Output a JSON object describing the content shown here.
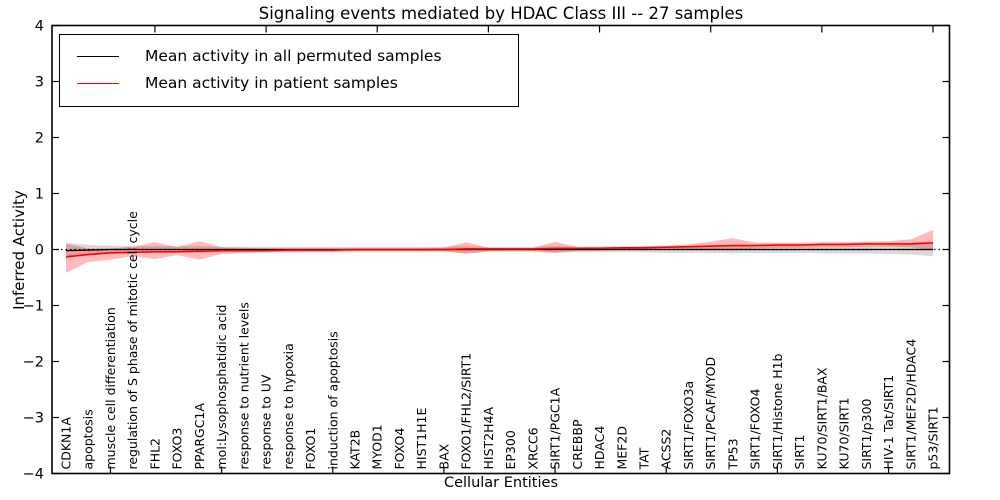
{
  "title": "Signaling events mediated by HDAC Class III -- 27 samples",
  "legend": {
    "items": [
      {
        "label": "Mean activity in all permuted samples",
        "color": "#000000"
      },
      {
        "label": "Mean activity in patient samples",
        "color": "#ff0000"
      }
    ]
  },
  "chart_data": {
    "type": "line",
    "title": "Signaling events mediated by HDAC Class III -- 27 samples",
    "xlabel": "Cellular Entities",
    "ylabel": "Inferred Activity",
    "ylim": [
      -4,
      4
    ],
    "yticks": [
      -4,
      -3,
      -2,
      -1,
      0,
      1,
      2,
      3,
      4
    ],
    "grid": false,
    "legend_position": "upper left",
    "zero_line_style": "dotted",
    "categories": [
      "CDKN1A",
      "apoptosis",
      "muscle cell differentiation",
      "regulation of S phase of mitotic cell cycle",
      "FHL2",
      "FOXO3",
      "PPARGC1A",
      "mol:Lysophosphatidic acid",
      "response to nutrient levels",
      "response to UV",
      "response to hypoxia",
      "FOXO1",
      "induction of apoptosis",
      "KAT2B",
      "MYOD1",
      "FOXO4",
      "HIST1H1E",
      "BAX",
      "FOXO1/FHL2/SIRT1",
      "HIST2H4A",
      "EP300",
      "XRCC6",
      "SIRT1/PGC1A",
      "CREBBP",
      "HDAC4",
      "MEF2D",
      "TAT",
      "ACSS2",
      "SIRT1/FOXO3a",
      "SIRT1/PCAF/MYOD",
      "TP53",
      "SIRT1/FOXO4",
      "SIRT1/Histone H1b",
      "SIRT1",
      "KU70/SIRT1/BAX",
      "KU70/SIRT1",
      "SIRT1/p300",
      "HIV-1 Tat/SIRT1",
      "SIRT1/MEF2D/HDAC4",
      "p53/SIRT1"
    ],
    "series": [
      {
        "name": "Mean activity in all permuted samples",
        "color": "#000000",
        "band_color": "rgba(0,0,0,0.15)",
        "values": [
          -0.02,
          -0.01,
          0,
          0,
          0,
          0,
          0,
          0,
          0,
          0,
          0,
          0,
          0,
          0,
          0,
          0,
          0,
          0,
          0,
          0,
          0,
          0,
          0,
          0,
          0,
          0,
          0,
          0,
          0,
          0,
          0,
          0,
          0,
          0,
          0,
          0,
          0,
          0,
          0,
          0
        ],
        "band_upper": [
          0.12,
          0.08,
          0.07,
          0.06,
          0.06,
          0.06,
          0.06,
          0.05,
          0.05,
          0.05,
          0.05,
          0.05,
          0.05,
          0.05,
          0.05,
          0.05,
          0.05,
          0.05,
          0.06,
          0.05,
          0.05,
          0.05,
          0.06,
          0.05,
          0.05,
          0.05,
          0.05,
          0.06,
          0.06,
          0.06,
          0.07,
          0.06,
          0.06,
          0.06,
          0.07,
          0.07,
          0.07,
          0.08,
          0.09,
          0.12
        ],
        "band_lower": [
          -0.12,
          -0.08,
          -0.07,
          -0.06,
          -0.06,
          -0.06,
          -0.06,
          -0.05,
          -0.05,
          -0.05,
          -0.05,
          -0.05,
          -0.05,
          -0.05,
          -0.05,
          -0.05,
          -0.05,
          -0.05,
          -0.06,
          -0.05,
          -0.05,
          -0.05,
          -0.06,
          -0.05,
          -0.05,
          -0.05,
          -0.05,
          -0.06,
          -0.06,
          -0.06,
          -0.07,
          -0.06,
          -0.06,
          -0.06,
          -0.07,
          -0.07,
          -0.07,
          -0.08,
          -0.09,
          -0.12
        ]
      },
      {
        "name": "Mean activity in patient samples",
        "color": "#ff0000",
        "band_color": "rgba(255,0,0,0.27)",
        "values": [
          -0.13,
          -0.09,
          -0.06,
          -0.05,
          -0.04,
          -0.04,
          -0.03,
          -0.02,
          -0.02,
          -0.02,
          -0.01,
          -0.01,
          -0.01,
          0,
          0,
          0,
          0,
          0,
          0.01,
          0.01,
          0.01,
          0.01,
          0.02,
          0.02,
          0.02,
          0.03,
          0.03,
          0.04,
          0.05,
          0.06,
          0.07,
          0.07,
          0.08,
          0.08,
          0.09,
          0.09,
          0.1,
          0.1,
          0.1,
          0.12
        ],
        "band_upper": [
          0.1,
          0.02,
          0.02,
          0.05,
          0.13,
          0.04,
          0.15,
          0.04,
          0.03,
          0.02,
          0.02,
          0.02,
          0.02,
          0.02,
          0.02,
          0.02,
          0.02,
          0.03,
          0.13,
          0.03,
          0.03,
          0.03,
          0.14,
          0.04,
          0.05,
          0.05,
          0.06,
          0.07,
          0.09,
          0.14,
          0.2,
          0.12,
          0.12,
          0.12,
          0.13,
          0.13,
          0.14,
          0.15,
          0.18,
          0.35
        ],
        "band_lower": [
          -0.42,
          -0.22,
          -0.18,
          -0.12,
          -0.17,
          -0.1,
          -0.18,
          -0.08,
          -0.06,
          -0.05,
          -0.05,
          -0.04,
          -0.04,
          -0.03,
          -0.03,
          -0.03,
          -0.03,
          -0.03,
          -0.08,
          -0.03,
          -0.02,
          -0.02,
          -0.06,
          -0.02,
          -0.02,
          -0.01,
          -0.01,
          -0.01,
          0.0,
          0.0,
          -0.02,
          0.02,
          0.03,
          0.03,
          0.04,
          0.04,
          0.05,
          0.05,
          0.04,
          -0.02
        ]
      }
    ]
  }
}
